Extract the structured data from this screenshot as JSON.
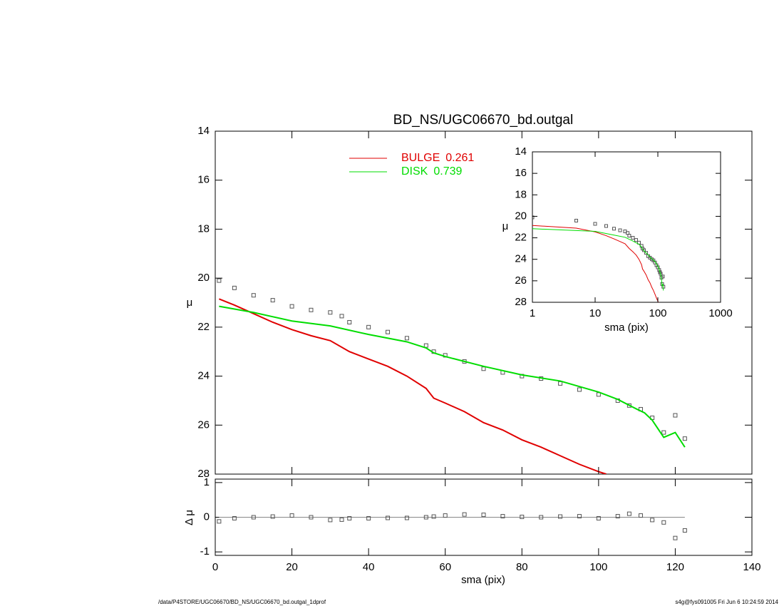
{
  "chart_data": [
    {
      "type": "line",
      "title": "BD_NS/UGC06670_bd.outgal",
      "ylabel": "μ",
      "xlim": [
        0,
        140
      ],
      "ylim": [
        28,
        14
      ],
      "yticks": [
        14,
        16,
        18,
        20,
        22,
        24,
        26,
        28
      ],
      "series": [
        {
          "marker": "square",
          "color": "#555555",
          "x": [
            1,
            5,
            10,
            15,
            20,
            25,
            30,
            33,
            35,
            40,
            45,
            50,
            55,
            57,
            60,
            65,
            70,
            75,
            80,
            85,
            90,
            95,
            100,
            105,
            108,
            111,
            114,
            117,
            120,
            122.5
          ],
          "values": [
            20.1,
            20.4,
            20.7,
            20.9,
            21.15,
            21.3,
            21.4,
            21.55,
            21.8,
            22.0,
            22.2,
            22.45,
            22.75,
            23.0,
            23.15,
            23.4,
            23.7,
            23.85,
            24.0,
            24.1,
            24.3,
            24.55,
            24.75,
            25.0,
            25.2,
            25.35,
            25.7,
            26.3,
            25.6,
            26.55
          ]
        },
        {
          "name": "BULGE",
          "fraction": 0.261,
          "color": "#e00000",
          "x": [
            1,
            5,
            10,
            15,
            20,
            25,
            30,
            35,
            40,
            45,
            50,
            55,
            57,
            60,
            65,
            70,
            75,
            80,
            85,
            90,
            95,
            100,
            102
          ],
          "values": [
            20.85,
            21.1,
            21.45,
            21.8,
            22.1,
            22.35,
            22.55,
            23.0,
            23.3,
            23.6,
            24.0,
            24.5,
            24.9,
            25.1,
            25.45,
            25.9,
            26.2,
            26.6,
            26.9,
            27.25,
            27.6,
            27.9,
            28.0
          ]
        },
        {
          "name": "DISK",
          "fraction": 0.739,
          "color": "#00dd00",
          "x": [
            1,
            10,
            20,
            30,
            40,
            50,
            55,
            57,
            60,
            70,
            80,
            90,
            100,
            105,
            110,
            112,
            114,
            117,
            120,
            122.5
          ],
          "values": [
            21.15,
            21.4,
            21.75,
            21.95,
            22.3,
            22.6,
            22.85,
            23.05,
            23.2,
            23.6,
            23.95,
            24.2,
            24.65,
            24.95,
            25.35,
            25.5,
            25.8,
            26.5,
            26.3,
            26.9
          ]
        }
      ]
    },
    {
      "type": "scatter",
      "xlabel": "sma (pix)",
      "ylabel": "Δ μ",
      "xlim": [
        0,
        140
      ],
      "xticks": [
        0,
        20,
        40,
        60,
        80,
        100,
        120,
        140
      ],
      "ylim": [
        -1.1,
        1.1
      ],
      "yticks": [
        -1,
        0,
        1
      ],
      "reference": 0,
      "x": [
        1,
        5,
        10,
        15,
        20,
        25,
        30,
        33,
        35,
        40,
        45,
        50,
        55,
        57,
        60,
        65,
        70,
        75,
        80,
        85,
        90,
        95,
        100,
        105,
        108,
        111,
        114,
        117,
        120,
        122.5
      ],
      "values": [
        -0.12,
        -0.03,
        0.0,
        0.02,
        0.05,
        0.0,
        -0.08,
        -0.07,
        -0.03,
        -0.03,
        -0.02,
        -0.02,
        0.0,
        0.02,
        0.05,
        0.08,
        0.07,
        0.03,
        0.01,
        0.0,
        0.02,
        0.03,
        -0.03,
        0.03,
        0.1,
        0.05,
        -0.08,
        -0.15,
        -0.6,
        -0.38
      ]
    },
    {
      "type": "inset",
      "xlabel": "sma (pix)",
      "ylabel": "μ",
      "log_x": true,
      "xlim": [
        1,
        1000
      ],
      "xticks": [
        1,
        10,
        100,
        1000
      ],
      "ylim": [
        28,
        14
      ],
      "yticks": [
        14,
        16,
        18,
        20,
        22,
        24,
        26,
        28
      ]
    }
  ],
  "footer": {
    "left": "/data/P4STORE/UGC06670/BD_NS/UGC06670_bd.outgal_1dprof",
    "right": "s4g@fys091005  Fri Jun  6 10:24:59 2014"
  }
}
